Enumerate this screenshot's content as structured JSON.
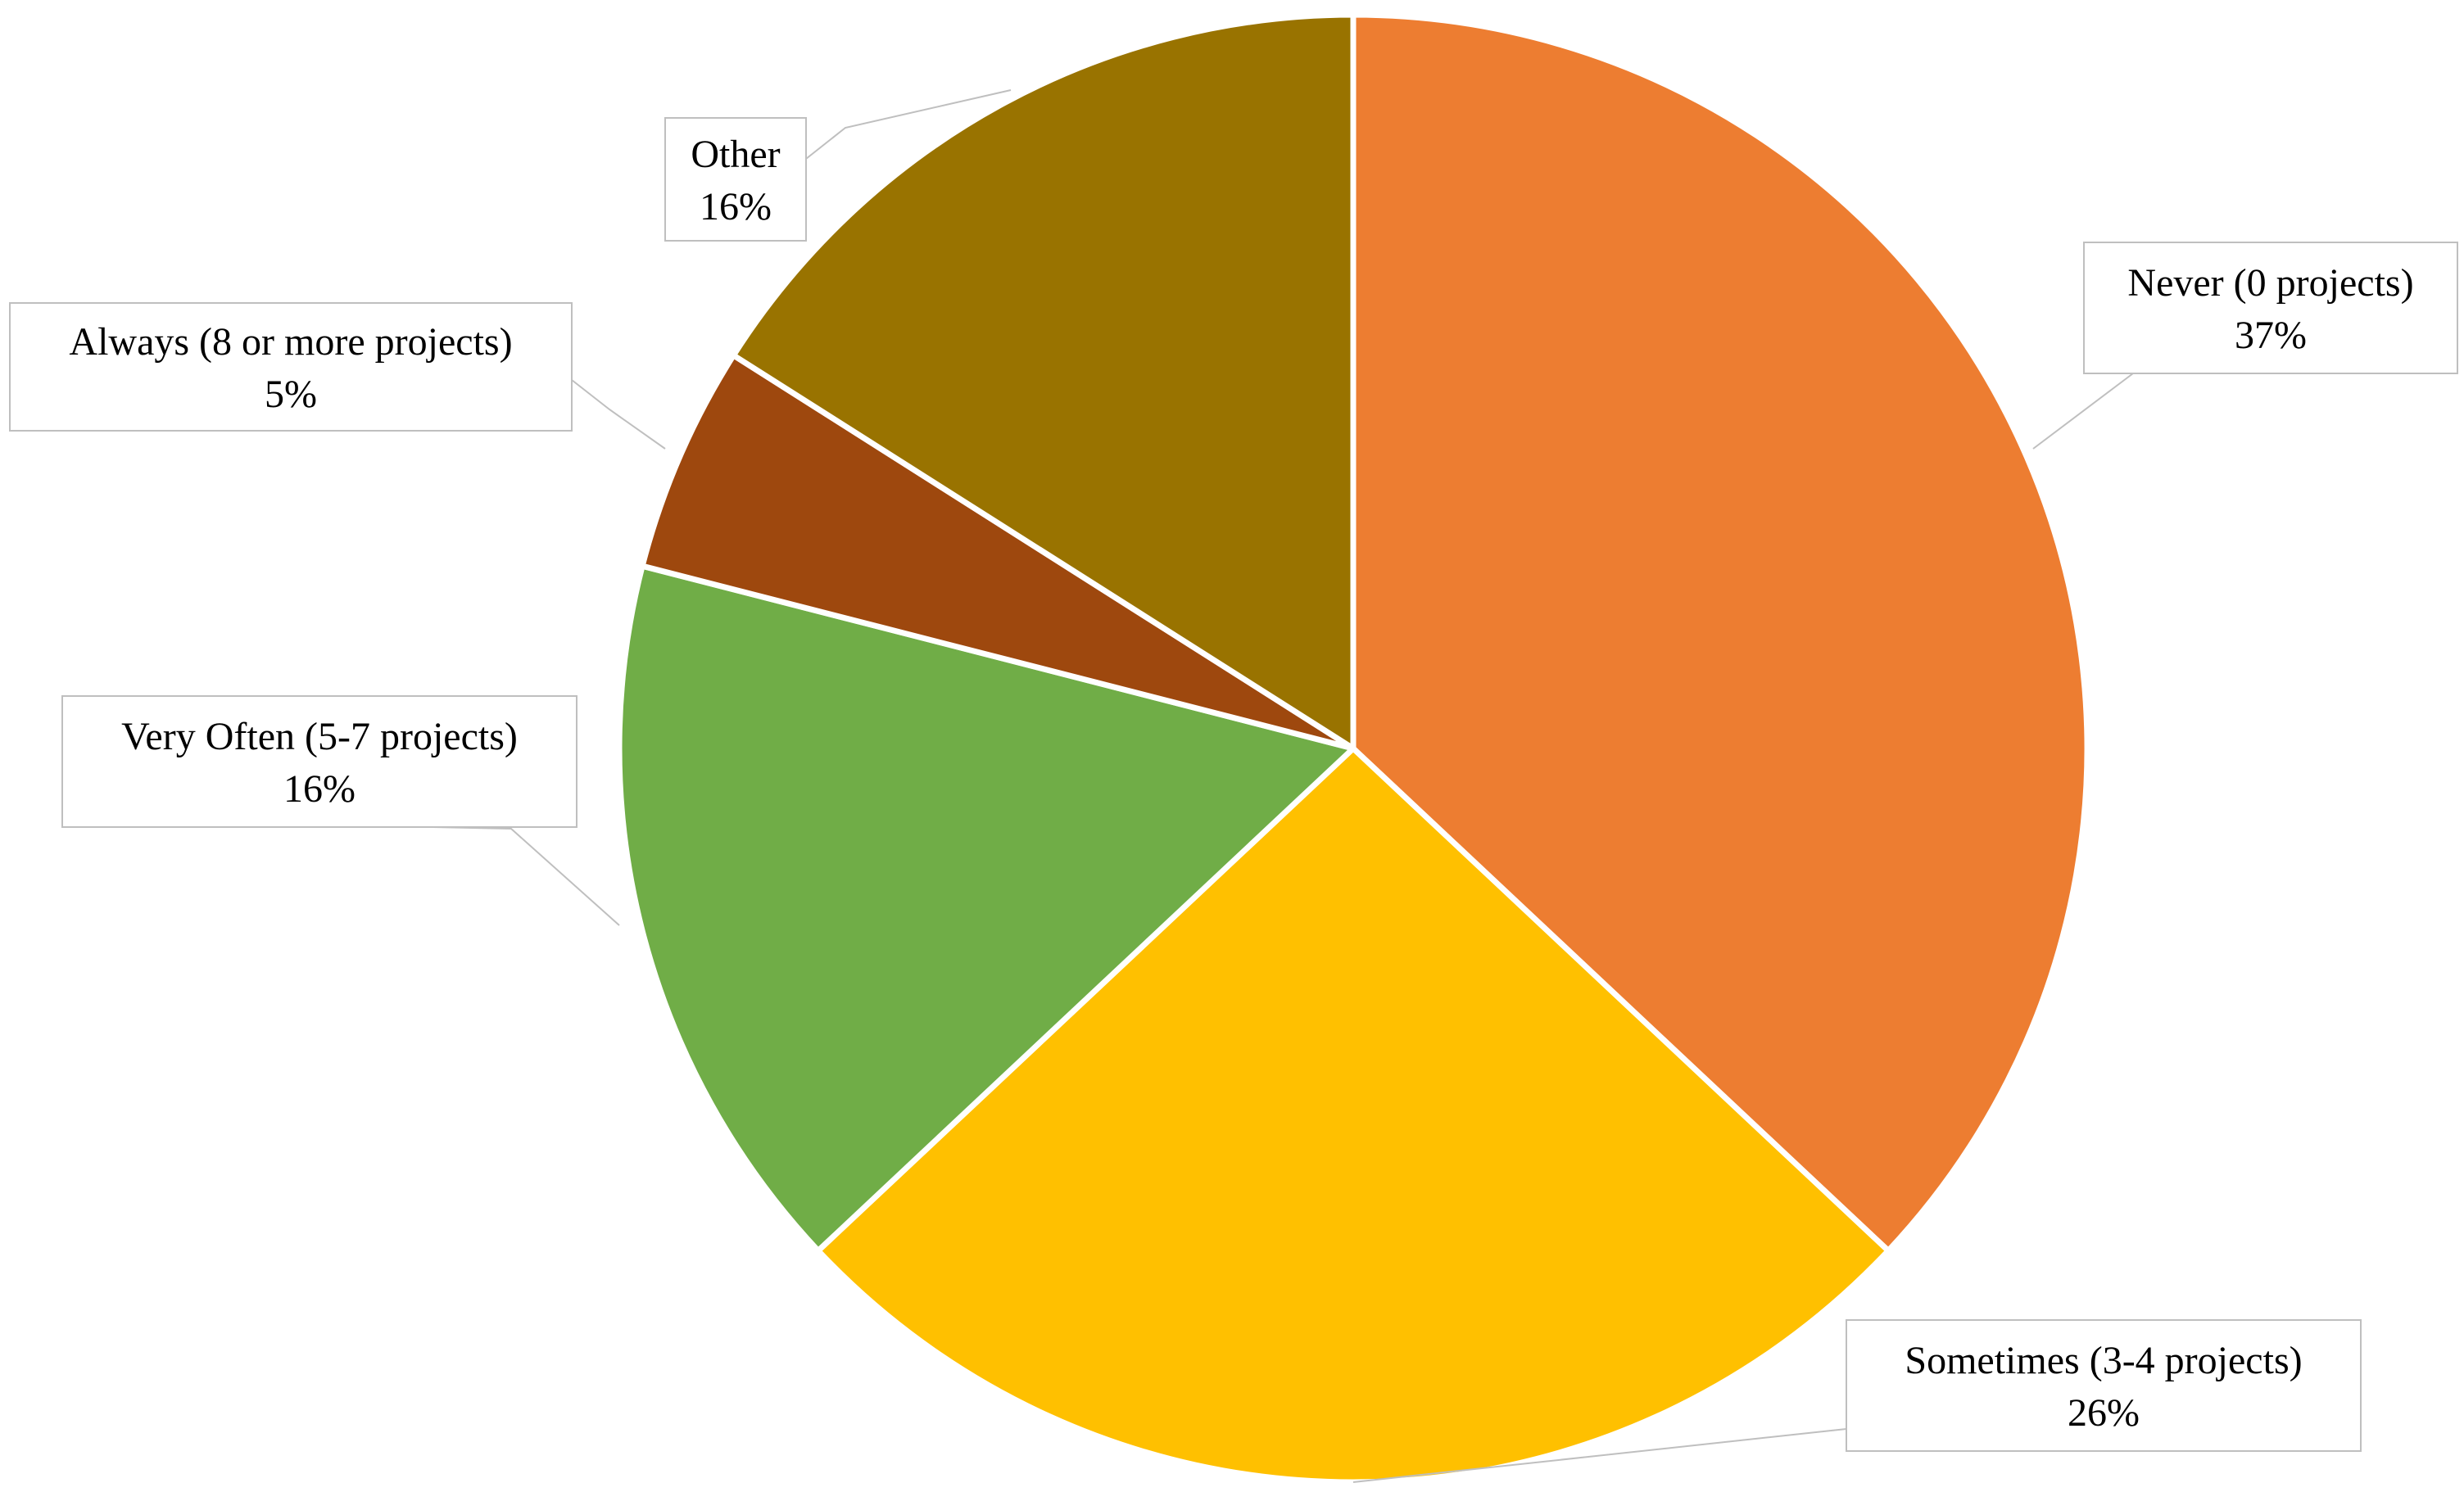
{
  "chart_data": {
    "type": "pie",
    "title": "",
    "start_angle_deg": 0,
    "direction": "clockwise",
    "slices": [
      {
        "label": "Never (0 projects)",
        "value": 37,
        "value_label": "37%",
        "color": "#ED7D31"
      },
      {
        "label": "Sometimes (3-4 projects)",
        "value": 26,
        "value_label": "26%",
        "color": "#FFC000"
      },
      {
        "label": "Very Often (5-7 projects)",
        "value": 16,
        "value_label": "16%",
        "color": "#70AD47"
      },
      {
        "label": "Always (8 or more projects)",
        "value": 5,
        "value_label": "5%",
        "color": "#9E480E"
      },
      {
        "label": "Other",
        "value": 16,
        "value_label": "16%",
        "color": "#997300"
      }
    ],
    "legend": "none",
    "data_labels": "callout boxes outside slices"
  }
}
